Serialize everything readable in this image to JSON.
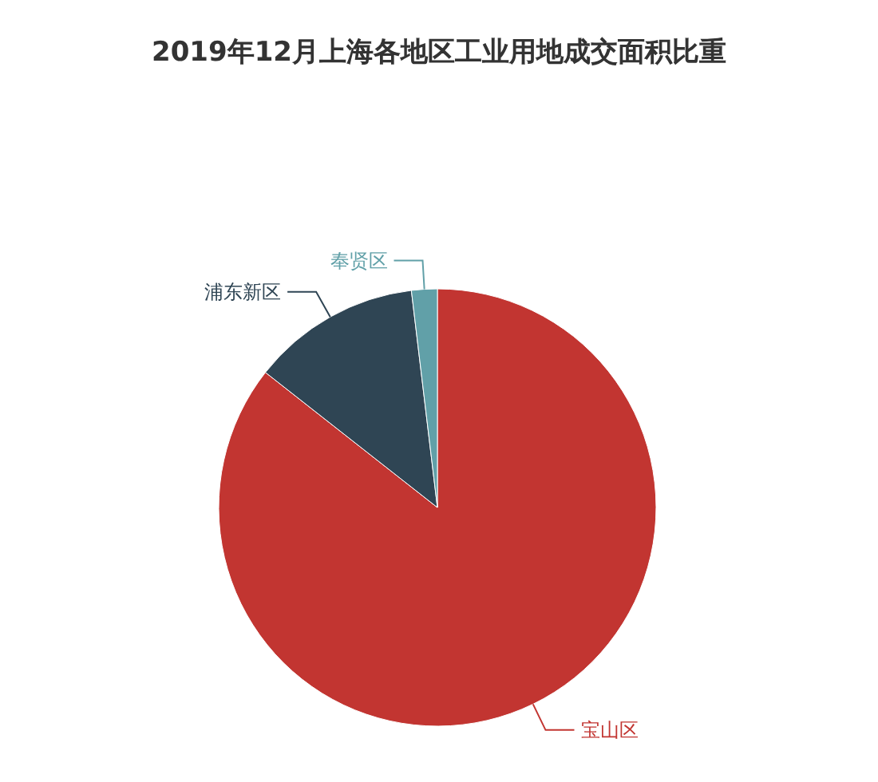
{
  "chart_data": {
    "type": "pie",
    "title": "2019年12月上海各地区工业用地成交面积比重",
    "categories": [
      "宝山区",
      "浦东新区",
      "奉贤区"
    ],
    "values": [
      85.6,
      12.5,
      1.9
    ],
    "colors": [
      "#c23531",
      "#2f4554",
      "#61a0a8"
    ]
  }
}
